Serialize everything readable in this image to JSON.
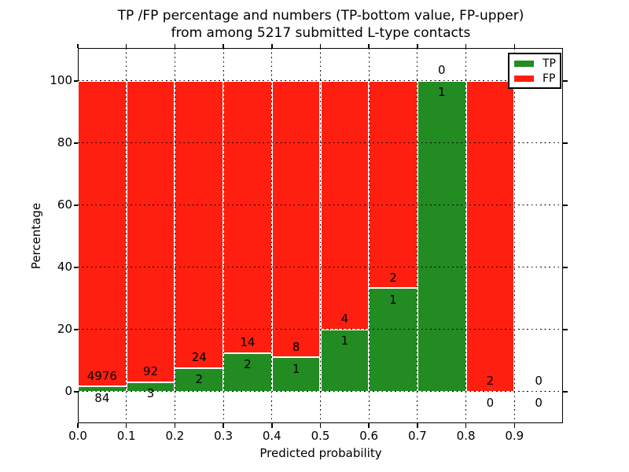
{
  "chart_data": {
    "type": "bar",
    "stacked": true,
    "title_lines": [
      "TP /FP percentage and numbers (TP-bottom value, FP-upper)",
      "from among 5217 submitted L-type contacts"
    ],
    "title": "TP /FP percentage and numbers (TP-bottom value, FP-upper)\nfrom among 5217 submitted L-type contacts",
    "xlabel": "Predicted probability",
    "ylabel": "Percentage",
    "total_contacts": 5217,
    "xlim": [
      0.0,
      1.0
    ],
    "ylim": [
      -10.1,
      110.6
    ],
    "x_tick_labels": [
      "0.0",
      "0.1",
      "0.2",
      "0.3",
      "0.4",
      "0.5",
      "0.6",
      "0.7",
      "0.8",
      "0.9"
    ],
    "x_ticks": [
      0.0,
      0.1,
      0.2,
      0.3,
      0.4,
      0.5,
      0.6,
      0.7,
      0.8,
      0.9
    ],
    "y_tick_labels": [
      "0",
      "20",
      "40",
      "60",
      "80",
      "100"
    ],
    "y_ticks": [
      0,
      20,
      40,
      60,
      80,
      100
    ],
    "grid": "dotted-black-both-axes",
    "legend_position": "upper-right",
    "legend": [
      {
        "label": "TP",
        "color": "#228b22"
      },
      {
        "label": "FP",
        "color": "#ff1f10"
      }
    ],
    "colors": {
      "tp": "#228b22",
      "fp": "#ff1f10",
      "bar_edge": "#ffffff",
      "grid": "#000000",
      "background": "#ffffff"
    },
    "value_semantics": "green bar height = tp/(tp+fp)*100 %, red stacked above to 100 %; labels show FP count above green top, TP count below",
    "bins": [
      {
        "range": [
          0.0,
          0.1
        ],
        "fp": 4976,
        "tp": 84,
        "tp_percent": 1.66
      },
      {
        "range": [
          0.1,
          0.2
        ],
        "fp": 92,
        "tp": 3,
        "tp_percent": 3.16
      },
      {
        "range": [
          0.2,
          0.3
        ],
        "fp": 24,
        "tp": 2,
        "tp_percent": 7.69
      },
      {
        "range": [
          0.3,
          0.4
        ],
        "fp": 14,
        "tp": 2,
        "tp_percent": 12.5
      },
      {
        "range": [
          0.4,
          0.5
        ],
        "fp": 8,
        "tp": 1,
        "tp_percent": 11.11
      },
      {
        "range": [
          0.5,
          0.6
        ],
        "fp": 4,
        "tp": 1,
        "tp_percent": 20.0
      },
      {
        "range": [
          0.6,
          0.7
        ],
        "fp": 2,
        "tp": 1,
        "tp_percent": 33.33
      },
      {
        "range": [
          0.7,
          0.8
        ],
        "fp": 0,
        "tp": 1,
        "tp_percent": 100.0
      },
      {
        "range": [
          0.8,
          0.9
        ],
        "fp": 2,
        "tp": 0,
        "tp_percent": 0.0
      },
      {
        "range": [
          0.9,
          1.0
        ],
        "fp": 0,
        "tp": 0,
        "tp_percent": null
      }
    ]
  }
}
